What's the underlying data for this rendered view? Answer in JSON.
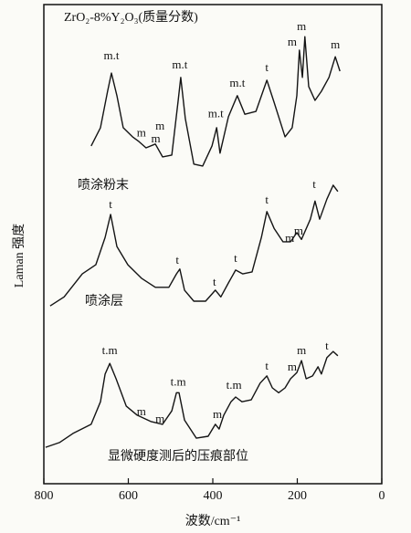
{
  "chart_data": {
    "type": "line",
    "title": "ZrO₂-8%Y₂O₃(质量分数)",
    "x_label": "波数/cm⁻¹",
    "y_label": "Laman 强度",
    "xlim": [
      800,
      0
    ],
    "xticks": [
      800,
      600,
      400,
      200,
      0
    ],
    "ylim": [
      0,
      100
    ],
    "series": [
      {
        "name": "喷涂粉末",
        "color": "#141414",
        "x": [
          688,
          666,
          649,
          640,
          627,
          612,
          590,
          575,
          558,
          536,
          519,
          497,
          482,
          476,
          465,
          445,
          424,
          402,
          391,
          383,
          363,
          342,
          324,
          298,
          272,
          255,
          229,
          212,
          201,
          195,
          188,
          182,
          173,
          158,
          143,
          125,
          110,
          99
        ],
        "values": [
          70.5,
          74.3,
          81.9,
          85.7,
          81,
          74.3,
          72.4,
          71.4,
          70.1,
          70.9,
          68.2,
          68.6,
          80,
          84.8,
          76.2,
          66.7,
          66.3,
          70.5,
          74.3,
          69,
          76.6,
          81,
          77.1,
          77.7,
          84.2,
          79.6,
          72.4,
          74.3,
          81,
          90.5,
          84.8,
          93.3,
          82.9,
          80,
          81.9,
          84.8,
          89.1,
          86.1
        ]
      },
      {
        "name": "喷涂层",
        "color": "#141414",
        "x": [
          785,
          752,
          709,
          677,
          655,
          642,
          627,
          601,
          569,
          536,
          504,
          486,
          478,
          467,
          445,
          417,
          402,
          394,
          381,
          363,
          346,
          329,
          307,
          285,
          272,
          255,
          234,
          216,
          201,
          190,
          169,
          158,
          147,
          130,
          115,
          104
        ],
        "values": [
          37.1,
          39,
          43.8,
          45.7,
          51.4,
          56.2,
          49.5,
          45.7,
          42.9,
          41,
          41,
          43.8,
          44.8,
          40.4,
          38.1,
          38.1,
          39.6,
          40.4,
          39,
          41.9,
          44.6,
          43.8,
          44.2,
          51.4,
          56.8,
          53.3,
          50.5,
          50.5,
          52.4,
          51,
          55.2,
          59,
          55.2,
          59.4,
          62.3,
          61
        ]
      },
      {
        "name": "显微硬度测后的压痕部位",
        "color": "#141414",
        "x": [
          796,
          763,
          731,
          688,
          666,
          655,
          644,
          629,
          605,
          579,
          547,
          519,
          497,
          486,
          480,
          467,
          439,
          411,
          394,
          385,
          374,
          357,
          346,
          331,
          309,
          288,
          272,
          259,
          244,
          229,
          216,
          201,
          190,
          179,
          164,
          151,
          143,
          130,
          115,
          104
        ],
        "values": [
          7.6,
          8.6,
          10.5,
          12.4,
          17.1,
          22.9,
          25.1,
          21.9,
          16.2,
          14.3,
          13,
          12.4,
          15.2,
          19,
          19,
          13.3,
          9.5,
          9.9,
          12.4,
          11.4,
          14.3,
          17.1,
          18.1,
          17.1,
          17.5,
          21,
          22.5,
          20,
          19,
          20,
          21.9,
          23.2,
          25.7,
          21.9,
          22.5,
          24.4,
          22.9,
          26.3,
          27.6,
          26.7
        ]
      }
    ],
    "annotations": [
      {
        "text": "m.t",
        "x": 640,
        "y": 89.1
      },
      {
        "text": "m",
        "x": 569,
        "y": 73
      },
      {
        "text": "m",
        "x": 525,
        "y": 74.5
      },
      {
        "text": "m",
        "x": 535,
        "y": 71.8
      },
      {
        "text": "m.t",
        "x": 478,
        "y": 87.2
      },
      {
        "text": "m.t",
        "x": 393,
        "y": 77
      },
      {
        "text": "m.t",
        "x": 342,
        "y": 83.4
      },
      {
        "text": "t",
        "x": 272,
        "y": 86.7
      },
      {
        "text": "m",
        "x": 212,
        "y": 92
      },
      {
        "text": "m",
        "x": 190,
        "y": 95.2
      },
      {
        "text": "m",
        "x": 110,
        "y": 91.4
      },
      {
        "text": "t",
        "x": 642,
        "y": 58.1
      },
      {
        "text": "t",
        "x": 484,
        "y": 46.5
      },
      {
        "text": "t",
        "x": 396,
        "y": 41.9
      },
      {
        "text": "t",
        "x": 346,
        "y": 46.9
      },
      {
        "text": "t",
        "x": 272,
        "y": 59
      },
      {
        "text": "m",
        "x": 218,
        "y": 51
      },
      {
        "text": "m",
        "x": 197,
        "y": 52.6
      },
      {
        "text": "t",
        "x": 160,
        "y": 62.3
      },
      {
        "text": "t.m",
        "x": 644,
        "y": 27.6
      },
      {
        "text": "m",
        "x": 569,
        "y": 14.9
      },
      {
        "text": "m",
        "x": 525,
        "y": 13.3
      },
      {
        "text": "t.m",
        "x": 482,
        "y": 21
      },
      {
        "text": "m",
        "x": 389,
        "y": 14.3
      },
      {
        "text": "t.m",
        "x": 350,
        "y": 20.4
      },
      {
        "text": "t",
        "x": 272,
        "y": 24.4
      },
      {
        "text": "m",
        "x": 212,
        "y": 24.2
      },
      {
        "text": "m",
        "x": 190,
        "y": 27.6
      },
      {
        "text": "t",
        "x": 130,
        "y": 28.6
      }
    ]
  }
}
